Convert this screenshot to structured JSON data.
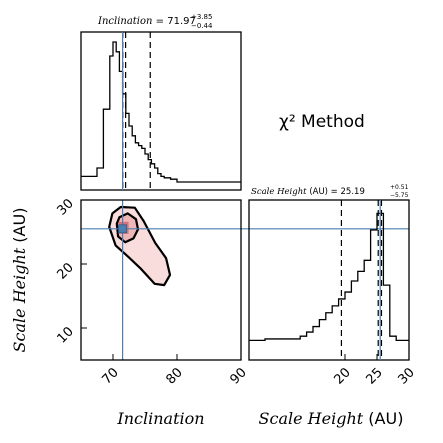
{
  "chart_data": {
    "type": "corner",
    "method_label": "χ² Method",
    "inclination": {
      "title_name": "Inclination",
      "title_value": "71.97",
      "title_plus": "+3.85",
      "title_minus": "−0.44",
      "xlabel": "Inclination",
      "xlim": [
        65,
        90
      ],
      "xticks": [
        70,
        80,
        90
      ],
      "median": 71.97,
      "quantiles": [
        71.53,
        71.97,
        75.82
      ],
      "truth": 71.5,
      "hist_bin_edges": [
        65,
        67.5,
        68.5,
        69.5,
        70,
        70.5,
        71,
        71.5,
        72,
        72.5,
        73,
        73.5,
        74,
        74.5,
        75,
        75.5,
        76,
        76.5,
        77,
        77.5,
        78,
        79,
        80,
        90
      ],
      "hist_counts": [
        0.04,
        0.1,
        0.52,
        0.9,
        1.0,
        0.93,
        0.79,
        0.63,
        0.49,
        0.4,
        0.33,
        0.28,
        0.26,
        0.24,
        0.2,
        0.16,
        0.13,
        0.1,
        0.06,
        0.04,
        0.03,
        0.02,
        0.0
      ]
    },
    "scale_height": {
      "title_name": "Scale Height",
      "title_unit": "(AU)",
      "title_value": "25.19",
      "title_plus": "+0.51",
      "title_minus": "−5.75",
      "xlabel_name": "Scale Height",
      "xlabel_unit": "(AU)",
      "ylabel_name": "Scale Height",
      "ylabel_unit": "(AU)",
      "xlim": [
        5,
        30
      ],
      "ylim": [
        5,
        30
      ],
      "ticks_x": [
        20,
        25,
        30
      ],
      "ticks_y": [
        10,
        20,
        30
      ],
      "quantiles": [
        19.44,
        25.19,
        25.7
      ],
      "truth": 25.5,
      "hist_bin_edges": [
        5,
        7.5,
        13,
        14,
        15,
        16,
        17,
        18,
        19,
        20,
        21,
        22,
        23,
        24,
        25,
        26,
        27,
        28,
        30
      ],
      "hist_counts": [
        0.07,
        0.08,
        0.1,
        0.13,
        0.17,
        0.22,
        0.27,
        0.32,
        0.37,
        0.42,
        0.5,
        0.57,
        0.65,
        0.87,
        0.99,
        0.47,
        0.1,
        0.07
      ]
    },
    "joint": {
      "truth_point": [
        71.5,
        25.5
      ],
      "inner_contour": [
        [
          70.6,
          26.3
        ],
        [
          71.0,
          27.3
        ],
        [
          72.3,
          27.9
        ],
        [
          73.6,
          27.0
        ],
        [
          73.9,
          25.4
        ],
        [
          73.2,
          24.0
        ],
        [
          71.9,
          23.4
        ],
        [
          70.8,
          24.3
        ]
      ],
      "outer_contour": [
        [
          69.4,
          25.8
        ],
        [
          69.9,
          27.9
        ],
        [
          71.2,
          28.9
        ],
        [
          73.4,
          28.8
        ],
        [
          74.8,
          26.7
        ],
        [
          76.6,
          23.3
        ],
        [
          78.3,
          20.9
        ],
        [
          78.9,
          18.3
        ],
        [
          78.0,
          16.7
        ],
        [
          76.5,
          16.9
        ],
        [
          74.4,
          19.2
        ],
        [
          72.3,
          21.2
        ],
        [
          70.4,
          22.9
        ]
      ]
    }
  }
}
